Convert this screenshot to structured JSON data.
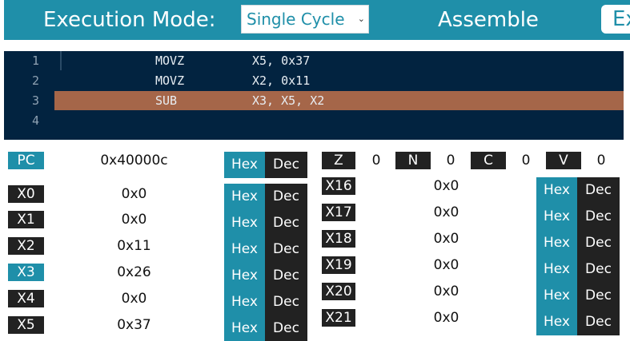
{
  "toolbar": {
    "execution_mode_label": "Execution Mode:",
    "mode_selected": "Single Cycle",
    "assemble_label": "Assemble",
    "execute_label": "Ex"
  },
  "editor": {
    "lines": [
      {
        "num": "1",
        "op": "MOVZ",
        "args": "X5, 0x37"
      },
      {
        "num": "2",
        "op": "MOVZ",
        "args": "X2, 0x11"
      },
      {
        "num": "3",
        "op": "SUB",
        "args": "X3, X5, X2"
      },
      {
        "num": "4",
        "op": "",
        "args": ""
      }
    ],
    "active_line": 3
  },
  "pc": {
    "label": "PC",
    "value": "0x40000c"
  },
  "format_toggle": {
    "hex": "Hex",
    "dec": "Dec"
  },
  "flags": [
    {
      "name": "Z",
      "value": "0"
    },
    {
      "name": "N",
      "value": "0"
    },
    {
      "name": "C",
      "value": "0"
    },
    {
      "name": "V",
      "value": "0"
    }
  ],
  "registers_left": [
    {
      "name": "X0",
      "value": "0x0"
    },
    {
      "name": "X1",
      "value": "0x0"
    },
    {
      "name": "X2",
      "value": "0x11"
    },
    {
      "name": "X3",
      "value": "0x26"
    },
    {
      "name": "X4",
      "value": "0x0"
    },
    {
      "name": "X5",
      "value": "0x37"
    }
  ],
  "registers_right": [
    {
      "name": "X16",
      "value": "0x0"
    },
    {
      "name": "X17",
      "value": "0x0"
    },
    {
      "name": "X18",
      "value": "0x0"
    },
    {
      "name": "X19",
      "value": "0x0"
    },
    {
      "name": "X20",
      "value": "0x0"
    },
    {
      "name": "X21",
      "value": "0x0"
    }
  ],
  "colors": {
    "accent": "#1f8fa9",
    "dark": "#222222",
    "editor_bg": "#022340",
    "highlight": "#a56649"
  }
}
